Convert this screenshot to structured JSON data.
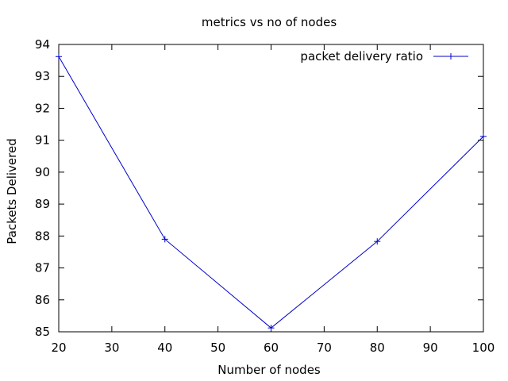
{
  "chart_data": {
    "type": "line",
    "title": "metrics vs no of nodes",
    "xlabel": "Number of nodes",
    "ylabel": "Packets Delivered",
    "xlim": [
      20,
      100
    ],
    "ylim": [
      85,
      94
    ],
    "xticks": [
      20,
      30,
      40,
      50,
      60,
      70,
      80,
      90,
      100
    ],
    "yticks": [
      85,
      86,
      87,
      88,
      89,
      90,
      91,
      92,
      93,
      94
    ],
    "grid": false,
    "legend_position": "top-right",
    "series": [
      {
        "name": "packet delivery ratio",
        "color": "#0000cc",
        "marker": "plus",
        "x": [
          20,
          40,
          60,
          80,
          100
        ],
        "y": [
          93.62,
          87.9,
          85.12,
          87.83,
          91.12
        ]
      }
    ]
  }
}
